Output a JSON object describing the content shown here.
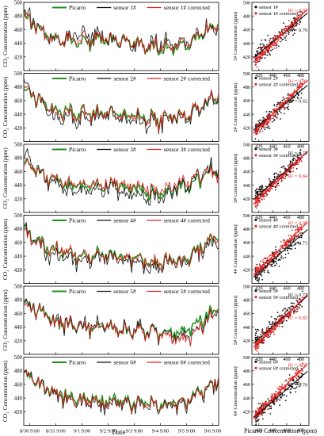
{
  "colors": {
    "picarro": "#1f8f1f",
    "sensor": "#111111",
    "corrected": "#e82020"
  },
  "time_series": {
    "ylabel": "CO₂ Concentration (ppm)",
    "xlabel": "Date",
    "ylim": [
      400,
      500
    ],
    "yticks": [
      420,
      440,
      460,
      480,
      500
    ],
    "xticks": [
      "8/30 9:00",
      "8/31 9:00",
      "9/1 9:00",
      "9/2 9:00",
      "9/3 9:00",
      "9/4 9:00",
      "9/5 9:00",
      "9/6 9:00"
    ],
    "legend_picarro": "Picarro"
  },
  "scatter_common": {
    "xlabel": "Picarro Concentration (ppm)",
    "xticks": [
      420,
      440,
      460,
      480
    ],
    "yticks": [
      420,
      440,
      460,
      480,
      500
    ],
    "xlim": [
      410,
      492
    ],
    "ylim": [
      400,
      500
    ]
  },
  "chart_data": [
    {
      "type": "line",
      "panel": 1,
      "legend": [
        "Picarro",
        "sensor 1#",
        "sensor 1# corrected"
      ],
      "x": [
        "8/30 9:00",
        "8/31 9:00",
        "9/1 9:00",
        "9/2 9:00",
        "9/3 9:00",
        "9/4 9:00",
        "9/5 9:00",
        "9/6 9:00"
      ],
      "series": [
        {
          "name": "Picarro",
          "values": [
            478,
            450,
            440,
            447,
            440,
            430,
            440,
            470
          ]
        },
        {
          "name": "sensor 1#",
          "values": [
            485,
            446,
            452,
            450,
            435,
            440,
            445,
            465
          ]
        },
        {
          "name": "sensor 1# corrected",
          "values": [
            480,
            448,
            444,
            449,
            438,
            433,
            442,
            468
          ]
        }
      ]
    },
    {
      "type": "line",
      "panel": 2,
      "legend": [
        "Picarro",
        "sensor 2#",
        "sensor 2# corrected"
      ],
      "x": [
        "8/30 9:00",
        "8/31 9:00",
        "9/1 9:00",
        "9/2 9:00",
        "9/3 9:00",
        "9/4 9:00",
        "9/5 9:00",
        "9/6 9:00"
      ],
      "series": [
        {
          "name": "Picarro",
          "values": [
            475,
            448,
            440,
            445,
            438,
            432,
            442,
            470
          ]
        },
        {
          "name": "sensor 2#",
          "values": [
            485,
            438,
            430,
            442,
            430,
            428,
            440,
            468
          ]
        },
        {
          "name": "sensor 2# corrected",
          "values": [
            478,
            446,
            438,
            445,
            436,
            431,
            443,
            472
          ]
        }
      ]
    },
    {
      "type": "line",
      "panel": 3,
      "legend": [
        "Picarro",
        "sensor 3#",
        "sensor 3# corrected"
      ],
      "x": [
        "8/30 9:00",
        "8/31 9:00",
        "9/1 9:00",
        "9/2 9:00",
        "9/3 9:00",
        "9/4 9:00",
        "9/5 9:00",
        "9/6 9:00"
      ],
      "series": [
        {
          "name": "Picarro",
          "values": [
            476,
            448,
            438,
            440,
            436,
            428,
            440,
            466
          ]
        },
        {
          "name": "sensor 3#",
          "values": [
            488,
            442,
            430,
            436,
            424,
            422,
            445,
            470
          ]
        },
        {
          "name": "sensor 3# corrected",
          "values": [
            475,
            450,
            440,
            442,
            440,
            432,
            448,
            462
          ]
        }
      ]
    },
    {
      "type": "line",
      "panel": 4,
      "legend": [
        "Picarro",
        "sensor 4#",
        "sensor 4# corrected"
      ],
      "x": [
        "8/30 9:00",
        "8/31 9:00",
        "9/1 9:00",
        "9/2 9:00",
        "9/3 9:00",
        "9/4 9:00",
        "9/5 9:00",
        "9/6 9:00"
      ],
      "series": [
        {
          "name": "Picarro",
          "values": [
            478,
            450,
            440,
            442,
            436,
            430,
            440,
            470
          ]
        },
        {
          "name": "sensor 4#",
          "values": [
            480,
            440,
            432,
            438,
            428,
            425,
            435,
            462
          ]
        },
        {
          "name": "sensor 4# corrected",
          "values": [
            474,
            448,
            442,
            440,
            435,
            430,
            438,
            468
          ]
        }
      ]
    },
    {
      "type": "line",
      "panel": 5,
      "legend": [
        "Picarro",
        "sensor 5#",
        "sensor 5# corrected"
      ],
      "x": [
        "8/30 9:00",
        "8/31 9:00",
        "9/1 9:00",
        "9/2 9:00",
        "9/3 9:00",
        "9/4 9:00",
        "9/5 9:00",
        "9/6 9:00"
      ],
      "series": [
        {
          "name": "Picarro",
          "values": [
            478,
            450,
            440,
            438,
            436,
            432,
            438,
            472
          ]
        },
        {
          "name": "sensor 5#",
          "values": [
            476,
            452,
            444,
            440,
            438,
            430,
            428,
            466
          ]
        },
        {
          "name": "sensor 5# corrected",
          "values": [
            475,
            449,
            441,
            438,
            435,
            428,
            424,
            470
          ]
        }
      ]
    },
    {
      "type": "line",
      "panel": 6,
      "legend": [
        "Picarro",
        "sensor 6#",
        "sensor 6# corrected"
      ],
      "x": [
        "8/30 9:00",
        "8/31 9:00",
        "9/1 9:00",
        "9/2 9:00",
        "9/3 9:00",
        "9/4 9:00",
        "9/5 9:00",
        "9/6 9:00"
      ],
      "series": [
        {
          "name": "Picarro",
          "values": [
            478,
            448,
            438,
            436,
            434,
            430,
            438,
            468
          ]
        },
        {
          "name": "sensor 6#",
          "values": [
            482,
            444,
            432,
            430,
            430,
            426,
            435,
            466
          ]
        },
        {
          "name": "sensor 6# corrected",
          "values": [
            480,
            446,
            436,
            433,
            432,
            428,
            437,
            470
          ]
        }
      ]
    },
    {
      "type": "scatter",
      "panel": 1,
      "ylabel": "1# Concentration (ppm)",
      "series": [
        {
          "name": "sensor 1#",
          "r2": "R² = 0.70",
          "fit": {
            "slope": 0.85,
            "intercept": 68
          }
        },
        {
          "name": "sensor 1# corrected",
          "r2": "R² = 0.93",
          "fit": {
            "slope": 1.0,
            "intercept": 0
          }
        }
      ]
    },
    {
      "type": "scatter",
      "panel": 2,
      "ylabel": "2# Concentration (ppm)",
      "series": [
        {
          "name": "sensor 2#",
          "r2": "R² = 0.62",
          "fit": {
            "slope": 0.85,
            "intercept": 66
          }
        },
        {
          "name": "sensor 2# corrected",
          "r2": "R² = 0.93",
          "fit": {
            "slope": 1.0,
            "intercept": 0
          }
        }
      ]
    },
    {
      "type": "scatter",
      "panel": 3,
      "ylabel": "3# Concentration (ppm)",
      "series": [
        {
          "name": "sensor 3#",
          "r2": "R² = 0.71",
          "fit": {
            "slope": 0.9,
            "intercept": 48
          }
        },
        {
          "name": "sensor 3# corrected",
          "r2": "R² = 0.84",
          "fit": {
            "slope": 1.0,
            "intercept": 0
          }
        }
      ]
    },
    {
      "type": "scatter",
      "panel": 4,
      "ylabel": "4# Concentration (ppm)",
      "series": [
        {
          "name": "sensor 4#",
          "r2": "R² = 0.73",
          "fit": {
            "slope": 0.9,
            "intercept": 38
          }
        },
        {
          "name": "sensor 4# corrected",
          "r2": "R² = 0.95",
          "fit": {
            "slope": 1.0,
            "intercept": 0
          }
        }
      ]
    },
    {
      "type": "scatter",
      "panel": 5,
      "ylabel": "5# Concentration (ppm)",
      "series": [
        {
          "name": "sensor 5#",
          "r2": "R² = 0.77",
          "fit": {
            "slope": 0.9,
            "intercept": 45
          }
        },
        {
          "name": "sensor 5# corrected",
          "r2": "R² = 0.83",
          "fit": {
            "slope": 1.0,
            "intercept": -2
          }
        }
      ]
    },
    {
      "type": "scatter",
      "panel": 6,
      "ylabel": "6# Concentration (ppm)",
      "series": [
        {
          "name": "sensor 6#",
          "r2": "R² = 0.70",
          "fit": {
            "slope": 0.88,
            "intercept": 48
          }
        },
        {
          "name": "sensor 6# corrected",
          "r2": "R² = 0.97",
          "fit": {
            "slope": 1.0,
            "intercept": 0
          }
        }
      ]
    }
  ]
}
